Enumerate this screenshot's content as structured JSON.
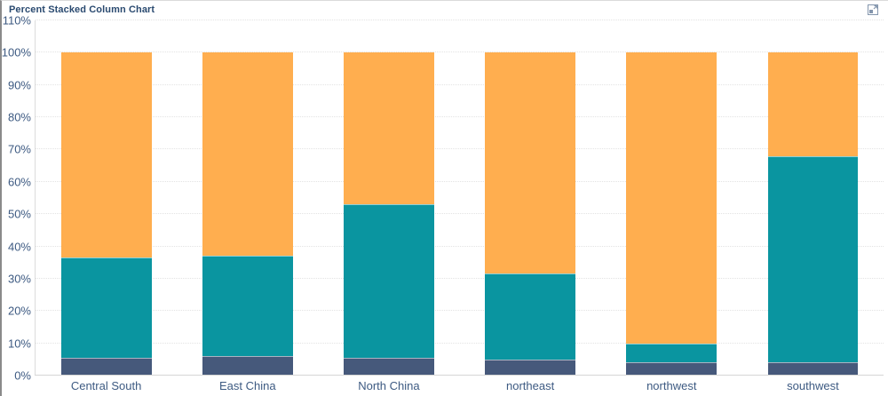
{
  "panel": {
    "title": "Percent Stacked Column Chart"
  },
  "icons": {
    "top_right": "expand-icon"
  },
  "colors": {
    "series_navy": "#46597B",
    "series_teal": "#0A95A0",
    "series_orange": "#FFAE4F",
    "axis_label_text": "#3D5A82",
    "title_text": "#2A4A70",
    "gridline": "#E3E3E3",
    "axis_line": "#DCDCDC"
  },
  "chart_data": {
    "type": "bar",
    "variant": "percent-stacked-column",
    "title": "Percent Stacked Column Chart",
    "categories": [
      "Central South",
      "East China",
      "North China",
      "northeast",
      "northwest",
      "southwest"
    ],
    "series": [
      {
        "name": "bottom-navy-segment",
        "color": "#46597B",
        "values": [
          5.5,
          6,
          5.5,
          5,
          4,
          4
        ]
      },
      {
        "name": "middle-teal-segment",
        "color": "#0A95A0",
        "values": [
          31,
          31,
          47.5,
          26.5,
          6,
          64
        ]
      },
      {
        "name": "top-orange-segment",
        "color": "#FFAE4F",
        "values": [
          63.5,
          63,
          47,
          68.5,
          90,
          32
        ]
      }
    ],
    "cumulative_tops_percent": {
      "navy": [
        5.5,
        6,
        5.5,
        5,
        4,
        4
      ],
      "teal": [
        36.5,
        37,
        53,
        31.5,
        10,
        68
      ]
    },
    "xlabel": "",
    "ylabel": "",
    "ylim": [
      0,
      110
    ],
    "ytick_interval": 10,
    "yticks": [
      "0%",
      "10%",
      "20%",
      "30%",
      "40%",
      "50%",
      "60%",
      "70%",
      "80%",
      "90%",
      "100%",
      "110%"
    ],
    "grid": "horizontal dotted",
    "legend": "none",
    "bar_width_fraction": 0.64
  }
}
